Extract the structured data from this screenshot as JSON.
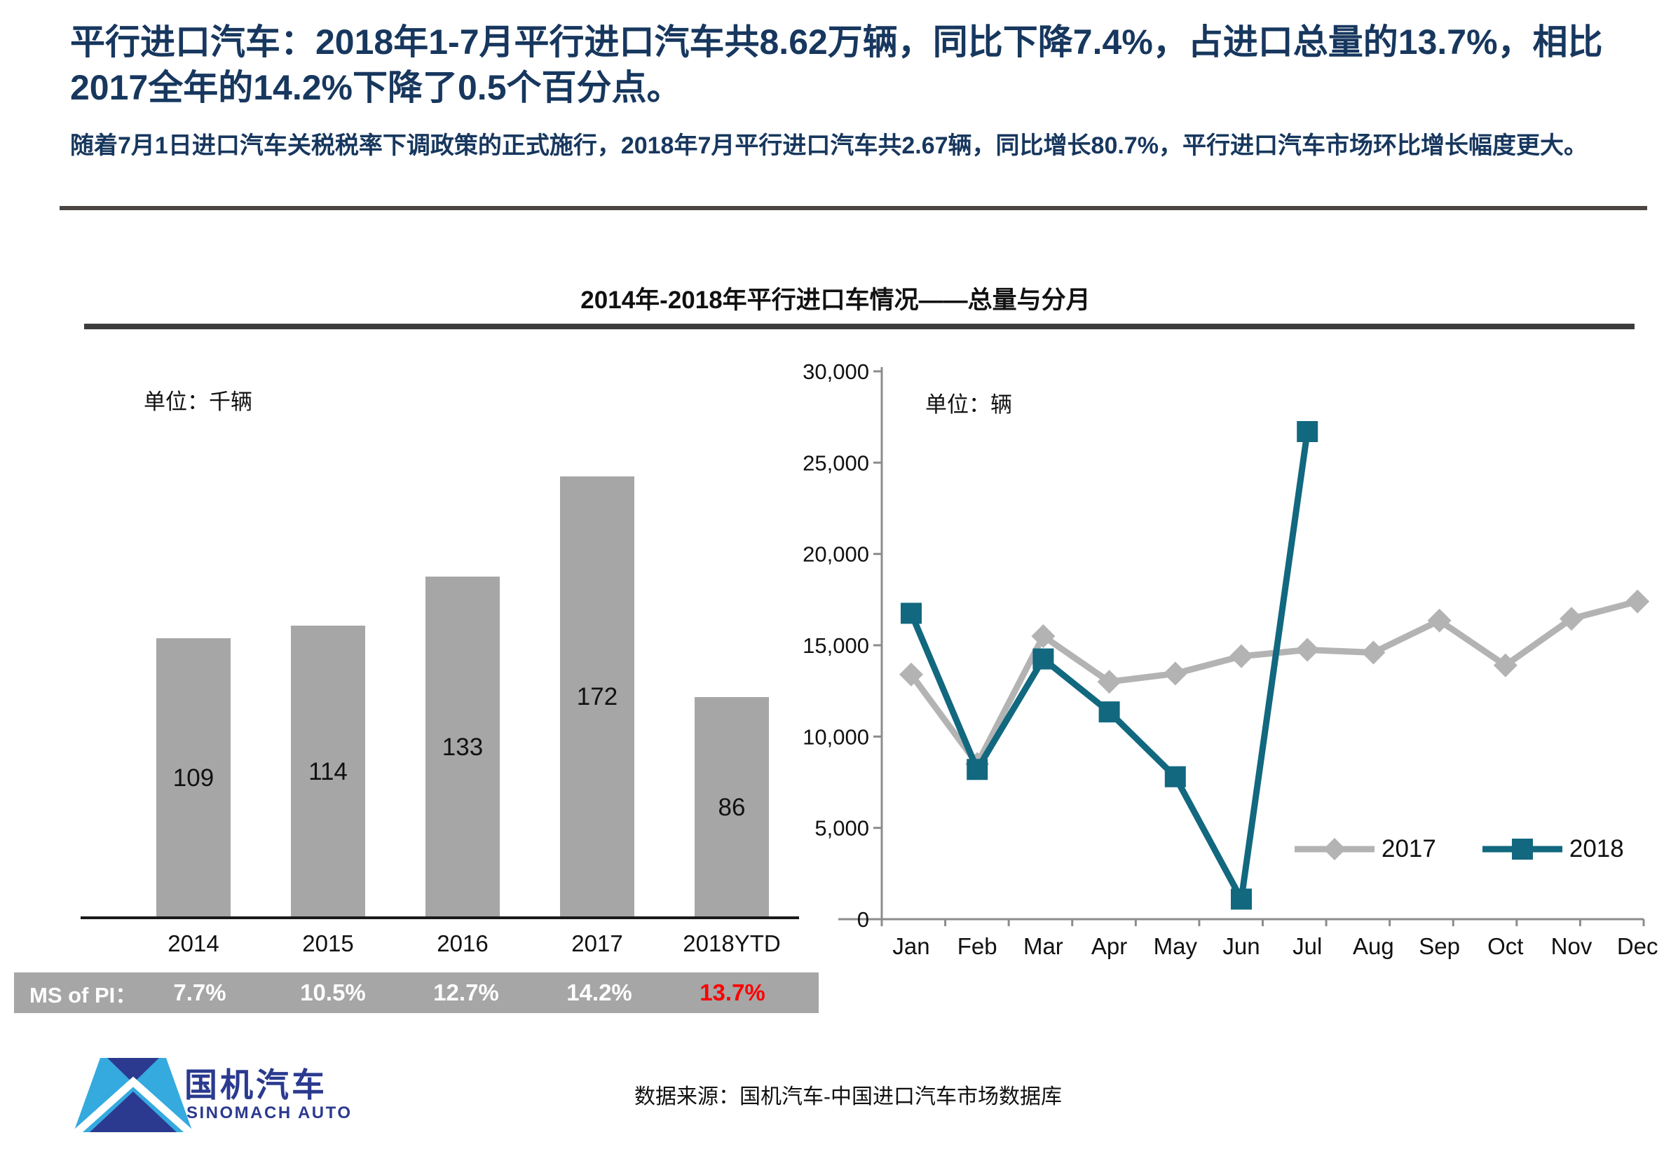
{
  "header": {
    "title": "平行进口汽车：2018年1-7月平行进口汽车共8.62万辆，同比下降7.4%，占进口总量的13.7%，相比2017全年的14.2%下降了0.5个百分点。",
    "subtitle": "随着7月1日进口汽车关税税率下调政策的正式施行，2018年7月平行进口汽车共2.67辆，同比增长80.7%，平行进口汽车市场环比增长幅度更大。"
  },
  "section": {
    "chart_title": "2014年-2018年平行进口车情况——总量与分月"
  },
  "colors": {
    "accent_navy": "#17375e",
    "bar_gray": "#a6a6a6",
    "band_gray": "#a6a6a6",
    "highlight_red": "#ff0000",
    "series_2017_gray": "#b3b3b3",
    "series_2018_teal": "#11687f",
    "logo_light_blue": "#35aadf",
    "logo_dark_blue": "#2b3a8f"
  },
  "chart_data": [
    {
      "type": "bar",
      "unit_label": "单位：千辆",
      "categories": [
        "2014",
        "2015",
        "2016",
        "2017",
        "2018YTD"
      ],
      "values": [
        109,
        114,
        133,
        172,
        86
      ],
      "ylim": [
        0,
        213
      ],
      "bar_color": "#a6a6a6",
      "band_label": "MS of PI：",
      "band_values": [
        "7.7%",
        "10.5%",
        "12.7%",
        "14.2%",
        "13.7%"
      ],
      "band_highlight_index": 4,
      "band_color": "#a6a6a6"
    },
    {
      "type": "line",
      "unit_label": "单位：辆",
      "x": [
        "Jan",
        "Feb",
        "Mar",
        "Apr",
        "May",
        "Jun",
        "Jul",
        "Aug",
        "Sep",
        "Oct",
        "Nov",
        "Dec"
      ],
      "ylim": [
        0,
        30000
      ],
      "yticks": [
        0,
        5000,
        10000,
        15000,
        20000,
        25000,
        30000
      ],
      "ytick_labels": [
        "0",
        "5,000",
        "10,000",
        "15,000",
        "20,000",
        "25,000",
        "30,000"
      ],
      "legend_position": "bottom-right",
      "series": [
        {
          "name": "2017",
          "color": "#b3b3b3",
          "marker": "diamond",
          "values": [
            13400,
            8500,
            15500,
            13000,
            13450,
            14400,
            14750,
            14600,
            16350,
            13900,
            16450,
            17400
          ]
        },
        {
          "name": "2018",
          "color": "#11687f",
          "marker": "square",
          "values": [
            16750,
            8200,
            14250,
            11350,
            7800,
            1100,
            26700
          ]
        }
      ]
    }
  ],
  "footer": {
    "logo_cn": "国机汽车",
    "logo_en": "SINOMACH AUTO",
    "source": "数据来源：国机汽车-中国进口汽车市场数据库"
  }
}
